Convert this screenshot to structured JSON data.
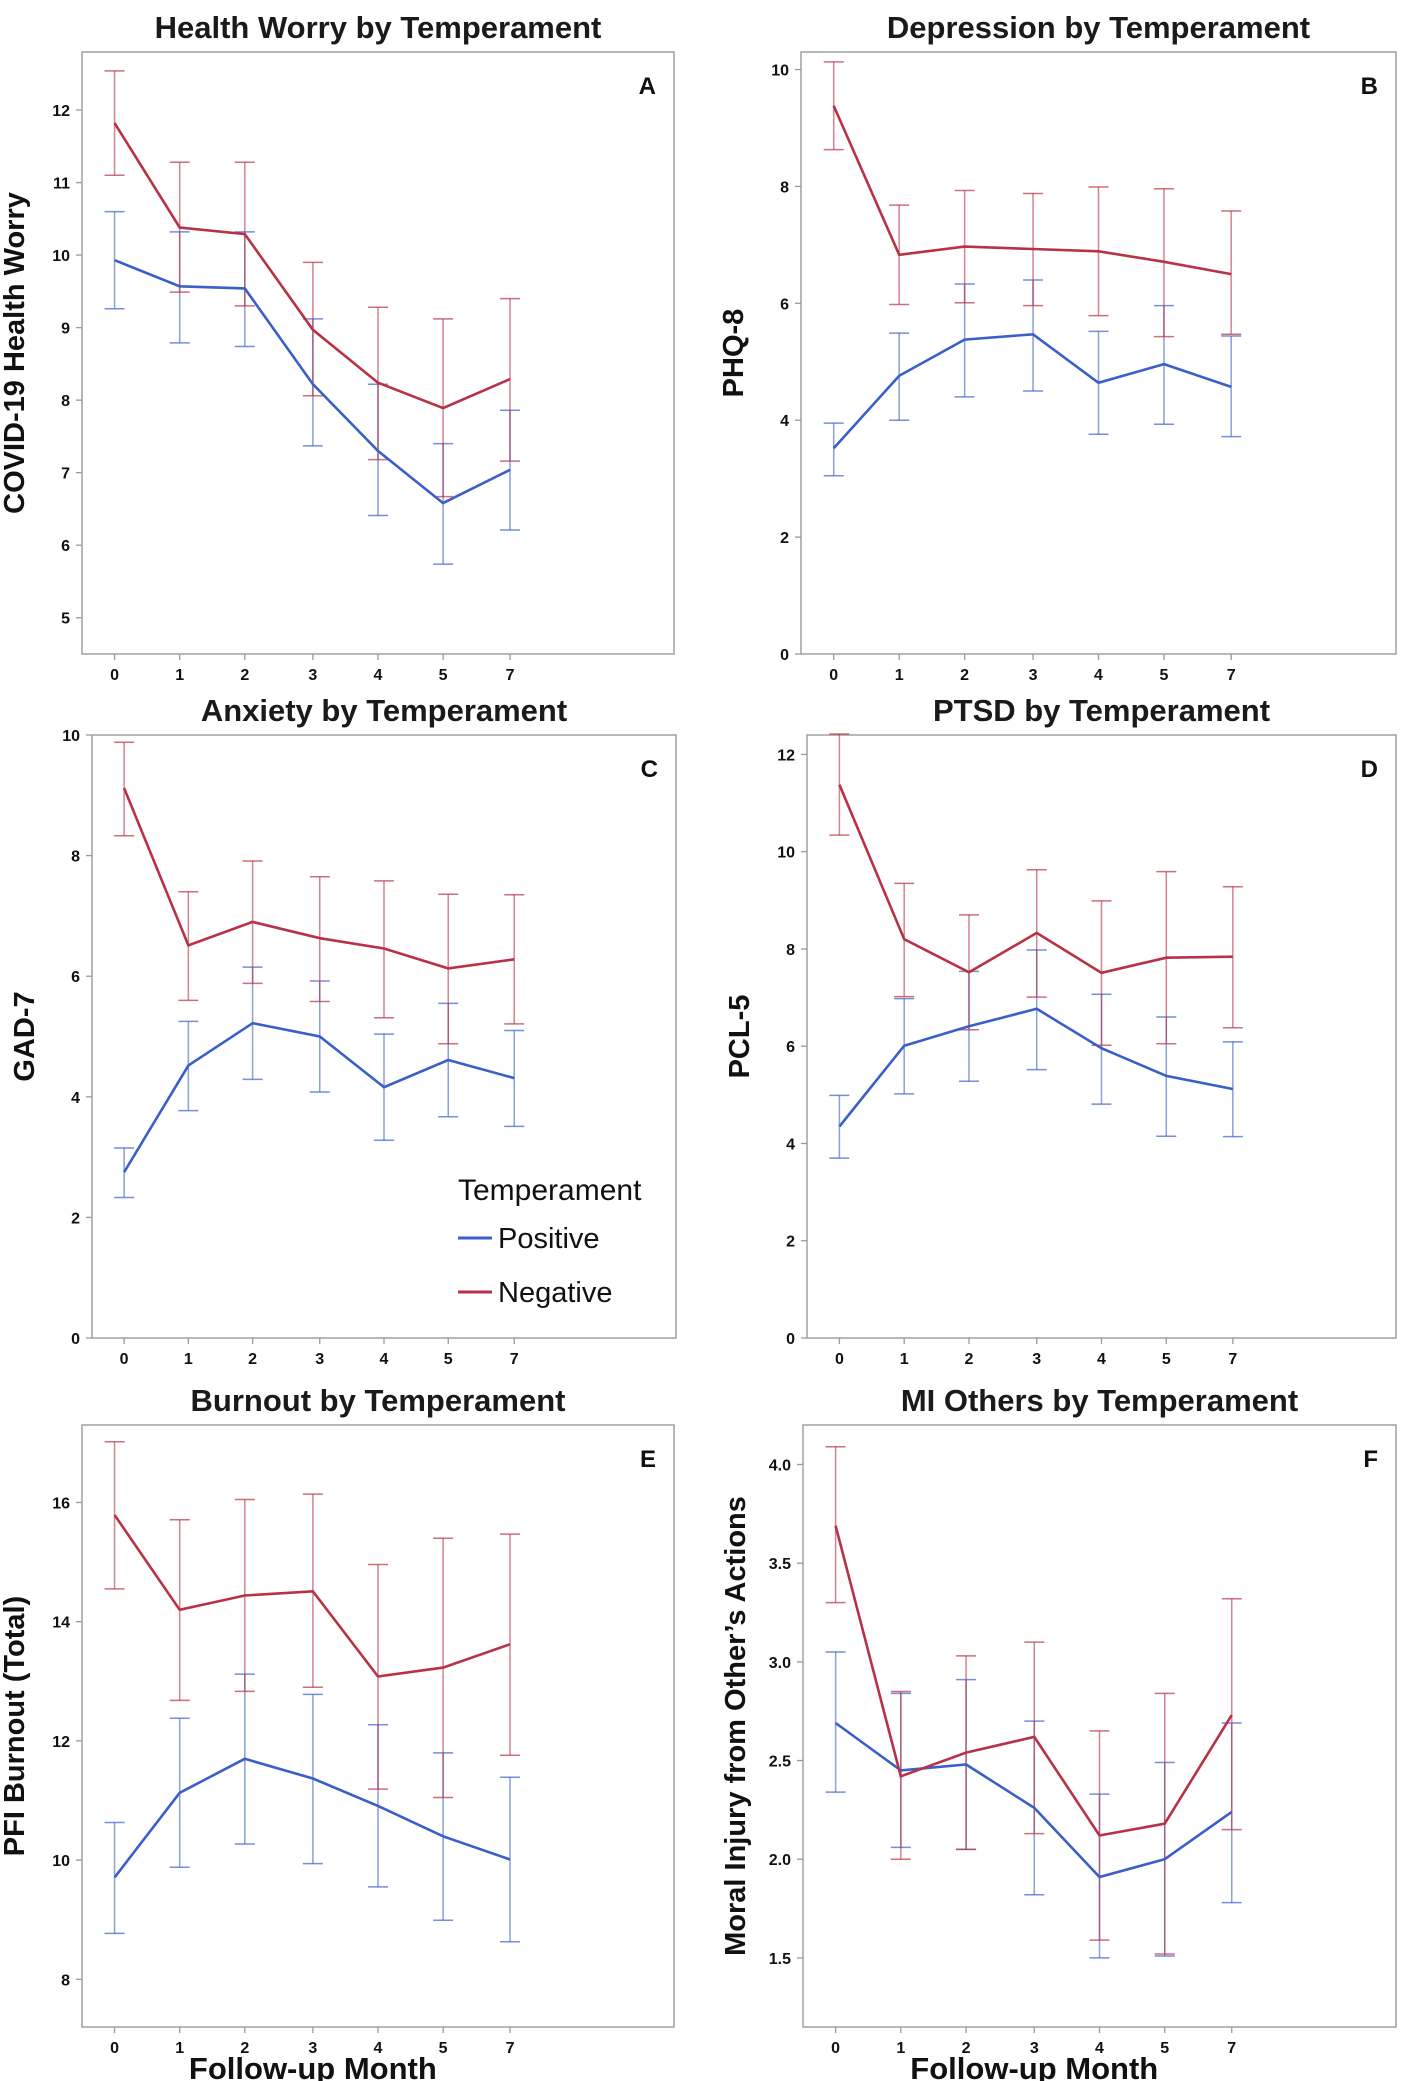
{
  "colors": {
    "positive": "#3a5fc8",
    "negative": "#b83246",
    "axis": "#9a9a9a"
  },
  "legend": {
    "title": "Temperament",
    "items": [
      "Positive",
      "Negative"
    ]
  },
  "chart_data": [
    {
      "type": "line",
      "panel": "A",
      "title": "Health Worry by Temperament",
      "xlabel": "",
      "ylabel": "COVID-19 Health Worry",
      "categories": [
        "0",
        "1",
        "2",
        "3",
        "4",
        "5",
        "7"
      ],
      "ylim": [
        4.5,
        12.8
      ],
      "yticks": [
        5,
        6,
        7,
        8,
        9,
        10,
        11,
        12
      ],
      "series": [
        {
          "name": "Positive",
          "values": [
            9.93,
            9.57,
            9.54,
            8.22,
            7.3,
            6.58,
            7.04
          ],
          "lower": [
            9.26,
            8.79,
            8.74,
            7.37,
            6.41,
            5.74,
            6.21
          ],
          "upper": [
            10.6,
            10.32,
            10.32,
            9.12,
            8.22,
            7.4,
            7.86
          ]
        },
        {
          "name": "Negative",
          "values": [
            11.82,
            10.38,
            10.29,
            8.97,
            8.24,
            7.89,
            8.29
          ],
          "lower": [
            11.1,
            9.49,
            9.3,
            8.06,
            7.18,
            6.67,
            7.16
          ],
          "upper": [
            12.54,
            11.28,
            11.28,
            9.9,
            9.28,
            9.12,
            9.4
          ]
        }
      ]
    },
    {
      "type": "line",
      "panel": "B",
      "title": "Depression by Temperament",
      "xlabel": "",
      "ylabel": "PHQ-8",
      "categories": [
        "0",
        "1",
        "2",
        "3",
        "4",
        "5",
        "7"
      ],
      "ylim": [
        0,
        10.3
      ],
      "yticks": [
        0,
        2,
        4,
        6,
        8,
        10
      ],
      "series": [
        {
          "name": "Positive",
          "values": [
            3.52,
            4.76,
            5.38,
            5.47,
            4.64,
            4.96,
            4.57
          ],
          "lower": [
            3.05,
            4.0,
            4.4,
            4.5,
            3.76,
            3.93,
            3.72
          ],
          "upper": [
            3.95,
            5.49,
            6.33,
            6.4,
            5.52,
            5.96,
            5.44
          ]
        },
        {
          "name": "Negative",
          "values": [
            9.38,
            6.83,
            6.97,
            6.93,
            6.89,
            6.71,
            6.5
          ],
          "lower": [
            8.63,
            5.98,
            6.01,
            5.96,
            5.79,
            5.43,
            5.47
          ],
          "upper": [
            10.13,
            7.68,
            7.93,
            7.88,
            7.99,
            7.96,
            7.58
          ]
        }
      ]
    },
    {
      "type": "line",
      "panel": "C",
      "title": "Anxiety by Temperament",
      "xlabel": "",
      "ylabel": "GAD-7",
      "categories": [
        "0",
        "1",
        "2",
        "3",
        "4",
        "5",
        "7"
      ],
      "ylim": [
        0,
        10
      ],
      "yticks": [
        0,
        2,
        4,
        6,
        8,
        10
      ],
      "series": [
        {
          "name": "Positive",
          "values": [
            2.75,
            4.52,
            5.22,
            5.0,
            4.16,
            4.61,
            4.31
          ],
          "lower": [
            2.33,
            3.77,
            4.29,
            4.08,
            3.28,
            3.67,
            3.51
          ],
          "upper": [
            3.15,
            5.25,
            6.15,
            5.92,
            5.04,
            5.55,
            5.1
          ]
        },
        {
          "name": "Negative",
          "values": [
            9.12,
            6.51,
            6.9,
            6.63,
            6.46,
            6.13,
            6.28
          ],
          "lower": [
            8.33,
            5.6,
            5.88,
            5.58,
            5.31,
            4.88,
            5.21
          ],
          "upper": [
            9.88,
            7.4,
            7.91,
            7.65,
            7.58,
            7.36,
            7.35
          ]
        }
      ]
    },
    {
      "type": "line",
      "panel": "D",
      "title": "PTSD by Temperament",
      "xlabel": "",
      "ylabel": "PCL-5",
      "categories": [
        "0",
        "1",
        "2",
        "3",
        "4",
        "5",
        "7"
      ],
      "ylim": [
        0,
        12.4
      ],
      "yticks": [
        0,
        2,
        4,
        6,
        8,
        10,
        12
      ],
      "series": [
        {
          "name": "Positive",
          "values": [
            4.35,
            6.01,
            6.41,
            6.77,
            5.96,
            5.39,
            5.12
          ],
          "lower": [
            3.7,
            5.02,
            5.28,
            5.52,
            4.81,
            4.15,
            4.14
          ],
          "upper": [
            4.99,
            6.98,
            7.54,
            7.98,
            7.07,
            6.6,
            6.09
          ]
        },
        {
          "name": "Negative",
          "values": [
            11.38,
            8.2,
            7.52,
            8.33,
            7.51,
            7.82,
            7.84
          ],
          "lower": [
            10.34,
            7.02,
            6.34,
            7.01,
            6.02,
            6.05,
            6.38
          ],
          "upper": [
            12.42,
            9.35,
            8.7,
            9.63,
            8.99,
            9.59,
            9.28
          ]
        }
      ]
    },
    {
      "type": "line",
      "panel": "E",
      "title": "Burnout by Temperament",
      "xlabel": "Follow-up Month",
      "ylabel": "PFI Burnout (Total)",
      "categories": [
        "0",
        "1",
        "2",
        "3",
        "4",
        "5",
        "7"
      ],
      "ylim": [
        7.2,
        17.3
      ],
      "yticks": [
        8,
        10,
        12,
        14,
        16
      ],
      "series": [
        {
          "name": "Positive",
          "values": [
            9.71,
            11.13,
            11.7,
            11.37,
            10.91,
            10.4,
            10.01
          ],
          "lower": [
            8.77,
            9.88,
            10.27,
            9.94,
            9.55,
            8.99,
            8.63
          ],
          "upper": [
            10.63,
            12.38,
            13.12,
            12.78,
            12.27,
            11.8,
            11.39
          ]
        },
        {
          "name": "Negative",
          "values": [
            15.79,
            14.2,
            14.44,
            14.51,
            13.08,
            13.23,
            13.62
          ],
          "lower": [
            14.55,
            12.68,
            12.83,
            12.9,
            11.19,
            11.05,
            11.76
          ],
          "upper": [
            17.02,
            15.71,
            16.05,
            16.14,
            14.96,
            15.4,
            15.47
          ]
        }
      ]
    },
    {
      "type": "line",
      "panel": "F",
      "title": "MI Others by Temperament",
      "xlabel": "Follow-up Month",
      "ylabel": "Moral Injury from Other’s Actions",
      "categories": [
        "0",
        "1",
        "2",
        "3",
        "4",
        "5",
        "7"
      ],
      "ylim": [
        1.15,
        4.2
      ],
      "yticks": [
        1.5,
        2.0,
        2.5,
        3.0,
        3.5,
        4.0
      ],
      "series": [
        {
          "name": "Positive",
          "values": [
            2.69,
            2.45,
            2.48,
            2.26,
            1.91,
            2.0,
            2.24
          ],
          "lower": [
            2.34,
            2.06,
            2.05,
            1.82,
            1.5,
            1.51,
            1.78
          ],
          "upper": [
            3.05,
            2.84,
            2.91,
            2.7,
            2.33,
            2.49,
            2.69
          ]
        },
        {
          "name": "Negative",
          "values": [
            3.69,
            2.42,
            2.54,
            2.62,
            2.12,
            2.18,
            2.73
          ],
          "lower": [
            3.3,
            2.0,
            2.05,
            2.13,
            1.59,
            1.52,
            2.15
          ],
          "upper": [
            4.09,
            2.85,
            3.03,
            3.1,
            2.65,
            2.84,
            3.32
          ]
        }
      ]
    }
  ]
}
